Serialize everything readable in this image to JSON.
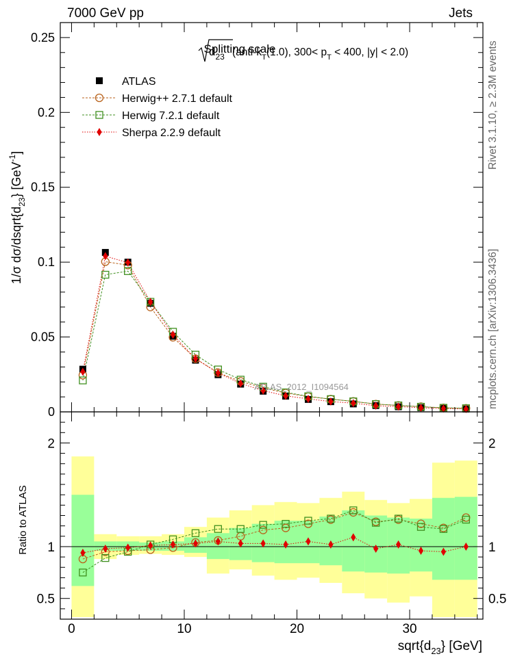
{
  "header": {
    "left": "7000 GeV pp",
    "right": "Jets"
  },
  "side_text": {
    "rivet": "Rivet 3.1.10, ≥ 2.3M events",
    "mcplots": "mcplots.cern.ch [arXiv:1306.3436]"
  },
  "colors": {
    "atlas": "#000000",
    "herwigpp": "#b8621b",
    "herwig7": "#3f8f1f",
    "sherpa": "#e00000",
    "band_yellow": "#ffff99",
    "band_green": "#99ff99"
  },
  "chart_data": [
    {
      "id": "main",
      "type": "scatter",
      "title": {
        "prefix": "Splitting scale",
        "sym": "d",
        "sym_sub": "23",
        "paren_start": "(anti-k",
        "k_sub": "T",
        "mid": "(1.0), 300< p",
        "p_sub": "T",
        "end": " < 400, |y| < 2.0)"
      },
      "ylabel": {
        "lead": "1/σ dσ/dsqrt{d",
        "sub": "23",
        "mid": "} [GeV",
        "sup": "-1",
        "end": "]"
      },
      "watermark": "ATLAS_2012_I1094564",
      "xlim": [
        -1,
        36.5
      ],
      "ylim": [
        0,
        0.26
      ],
      "yticks": [
        0,
        0.05,
        0.1,
        0.15,
        0.2,
        0.25
      ],
      "ytick_labels": [
        "0",
        "0.05",
        "0.1",
        "0.15",
        "0.2",
        "0.25"
      ],
      "x": [
        1,
        3,
        5,
        7,
        9,
        11,
        13,
        15,
        17,
        19,
        21,
        23,
        25,
        27,
        29,
        31,
        33,
        35
      ],
      "series": [
        {
          "name": "ATLAS",
          "key": "atlas",
          "marker": "square-filled",
          "values": [
            0.0285,
            0.1065,
            0.1,
            0.0725,
            0.0505,
            0.0345,
            0.0248,
            0.0185,
            0.0138,
            0.0105,
            0.0083,
            0.0068,
            0.0053,
            0.0042,
            0.0034,
            0.0028,
            0.0023,
            0.0019
          ]
        },
        {
          "name": "Herwig++ 2.7.1 default",
          "key": "herwigpp",
          "marker": "circle-open",
          "values": [
            0.0245,
            0.1003,
            0.098,
            0.07,
            0.0498,
            0.0355,
            0.0262,
            0.0204,
            0.016,
            0.0126,
            0.0102,
            0.0085,
            0.007,
            0.0052,
            0.0043,
            0.0035,
            0.0027,
            0.0024
          ]
        },
        {
          "name": "Herwig 7.2.1 default",
          "key": "herwig7",
          "marker": "square-open",
          "values": [
            0.021,
            0.0916,
            0.094,
            0.0735,
            0.0535,
            0.0382,
            0.0283,
            0.0215,
            0.0168,
            0.013,
            0.0104,
            0.0085,
            0.007,
            0.0052,
            0.0043,
            0.0034,
            0.0027,
            0.0024
          ]
        },
        {
          "name": "Sherpa 2.2.9 default",
          "key": "sherpa",
          "marker": "diamond-filled",
          "values": [
            0.0268,
            0.104,
            0.0997,
            0.0735,
            0.0515,
            0.0355,
            0.026,
            0.019,
            0.0142,
            0.0107,
            0.0087,
            0.0069,
            0.0058,
            0.0041,
            0.0035,
            0.0027,
            0.0022,
            0.0019
          ]
        }
      ]
    },
    {
      "id": "ratio",
      "type": "scatter",
      "ylabel": "Ratio to ATLAS",
      "xlabel": {
        "lead": "sqrt{d",
        "sub": "23",
        "end": "} [GeV]"
      },
      "xlim": [
        -1,
        36.5
      ],
      "ylim": [
        0.3,
        2.3
      ],
      "xticks": [
        0,
        10,
        20,
        30
      ],
      "xtick_labels": [
        "0",
        "10",
        "20",
        "30"
      ],
      "yticks": [
        0.5,
        1,
        2
      ],
      "ytick_labels": [
        "0.5",
        "1",
        "2"
      ],
      "bins": [
        [
          0,
          2
        ],
        [
          2,
          4
        ],
        [
          4,
          6
        ],
        [
          6,
          8
        ],
        [
          8,
          10
        ],
        [
          10,
          12
        ],
        [
          12,
          14
        ],
        [
          14,
          16
        ],
        [
          16,
          18
        ],
        [
          18,
          20
        ],
        [
          20,
          22
        ],
        [
          22,
          24
        ],
        [
          24,
          26
        ],
        [
          26,
          28
        ],
        [
          28,
          30
        ],
        [
          30,
          32
        ],
        [
          32,
          34
        ],
        [
          34,
          36
        ]
      ],
      "band_outer_lo": [
        0.32,
        0.88,
        0.92,
        0.93,
        0.92,
        0.9,
        0.74,
        0.78,
        0.72,
        0.68,
        0.7,
        0.65,
        0.55,
        0.5,
        0.46,
        0.52,
        0.32,
        0.32
      ],
      "band_outer_hi": [
        1.87,
        1.12,
        1.1,
        1.1,
        1.12,
        1.19,
        1.28,
        1.35,
        1.4,
        1.43,
        1.42,
        1.47,
        1.53,
        1.45,
        1.42,
        1.46,
        1.81,
        1.83
      ],
      "band_inner_lo": [
        0.62,
        0.96,
        0.96,
        0.96,
        0.96,
        0.94,
        0.88,
        0.87,
        0.85,
        0.84,
        0.84,
        0.82,
        0.76,
        0.75,
        0.74,
        0.76,
        0.68,
        0.68
      ],
      "band_inner_hi": [
        1.5,
        1.05,
        1.05,
        1.04,
        1.05,
        1.09,
        1.13,
        1.18,
        1.22,
        1.25,
        1.25,
        1.29,
        1.35,
        1.3,
        1.28,
        1.27,
        1.47,
        1.48
      ],
      "x": [
        1,
        3,
        5,
        7,
        9,
        11,
        13,
        15,
        17,
        19,
        21,
        23,
        25,
        27,
        29,
        31,
        33,
        35
      ],
      "series": [
        {
          "name": "Herwig++ 2.7.1 default",
          "key": "herwigpp",
          "marker": "circle-open",
          "values": [
            0.88,
            0.95,
            0.96,
            0.97,
            0.99,
            1.04,
            1.06,
            1.1,
            1.16,
            1.18,
            1.22,
            1.26,
            1.33,
            1.24,
            1.26,
            1.22,
            1.18,
            1.28
          ]
        },
        {
          "name": "Herwig 7.2.1 default",
          "key": "herwig7",
          "marker": "square-open",
          "values": [
            0.75,
            0.89,
            0.95,
            1.02,
            1.07,
            1.13,
            1.17,
            1.17,
            1.21,
            1.22,
            1.25,
            1.27,
            1.35,
            1.23,
            1.27,
            1.19,
            1.17,
            1.26
          ]
        },
        {
          "name": "Sherpa 2.2.9 default",
          "key": "sherpa",
          "marker": "diamond-filled",
          "values": [
            0.94,
            0.98,
            0.99,
            1.01,
            1.02,
            1.03,
            1.05,
            1.03,
            1.03,
            1.02,
            1.05,
            1.02,
            1.09,
            0.98,
            1.02,
            0.96,
            0.95,
            1.0
          ]
        }
      ]
    }
  ]
}
